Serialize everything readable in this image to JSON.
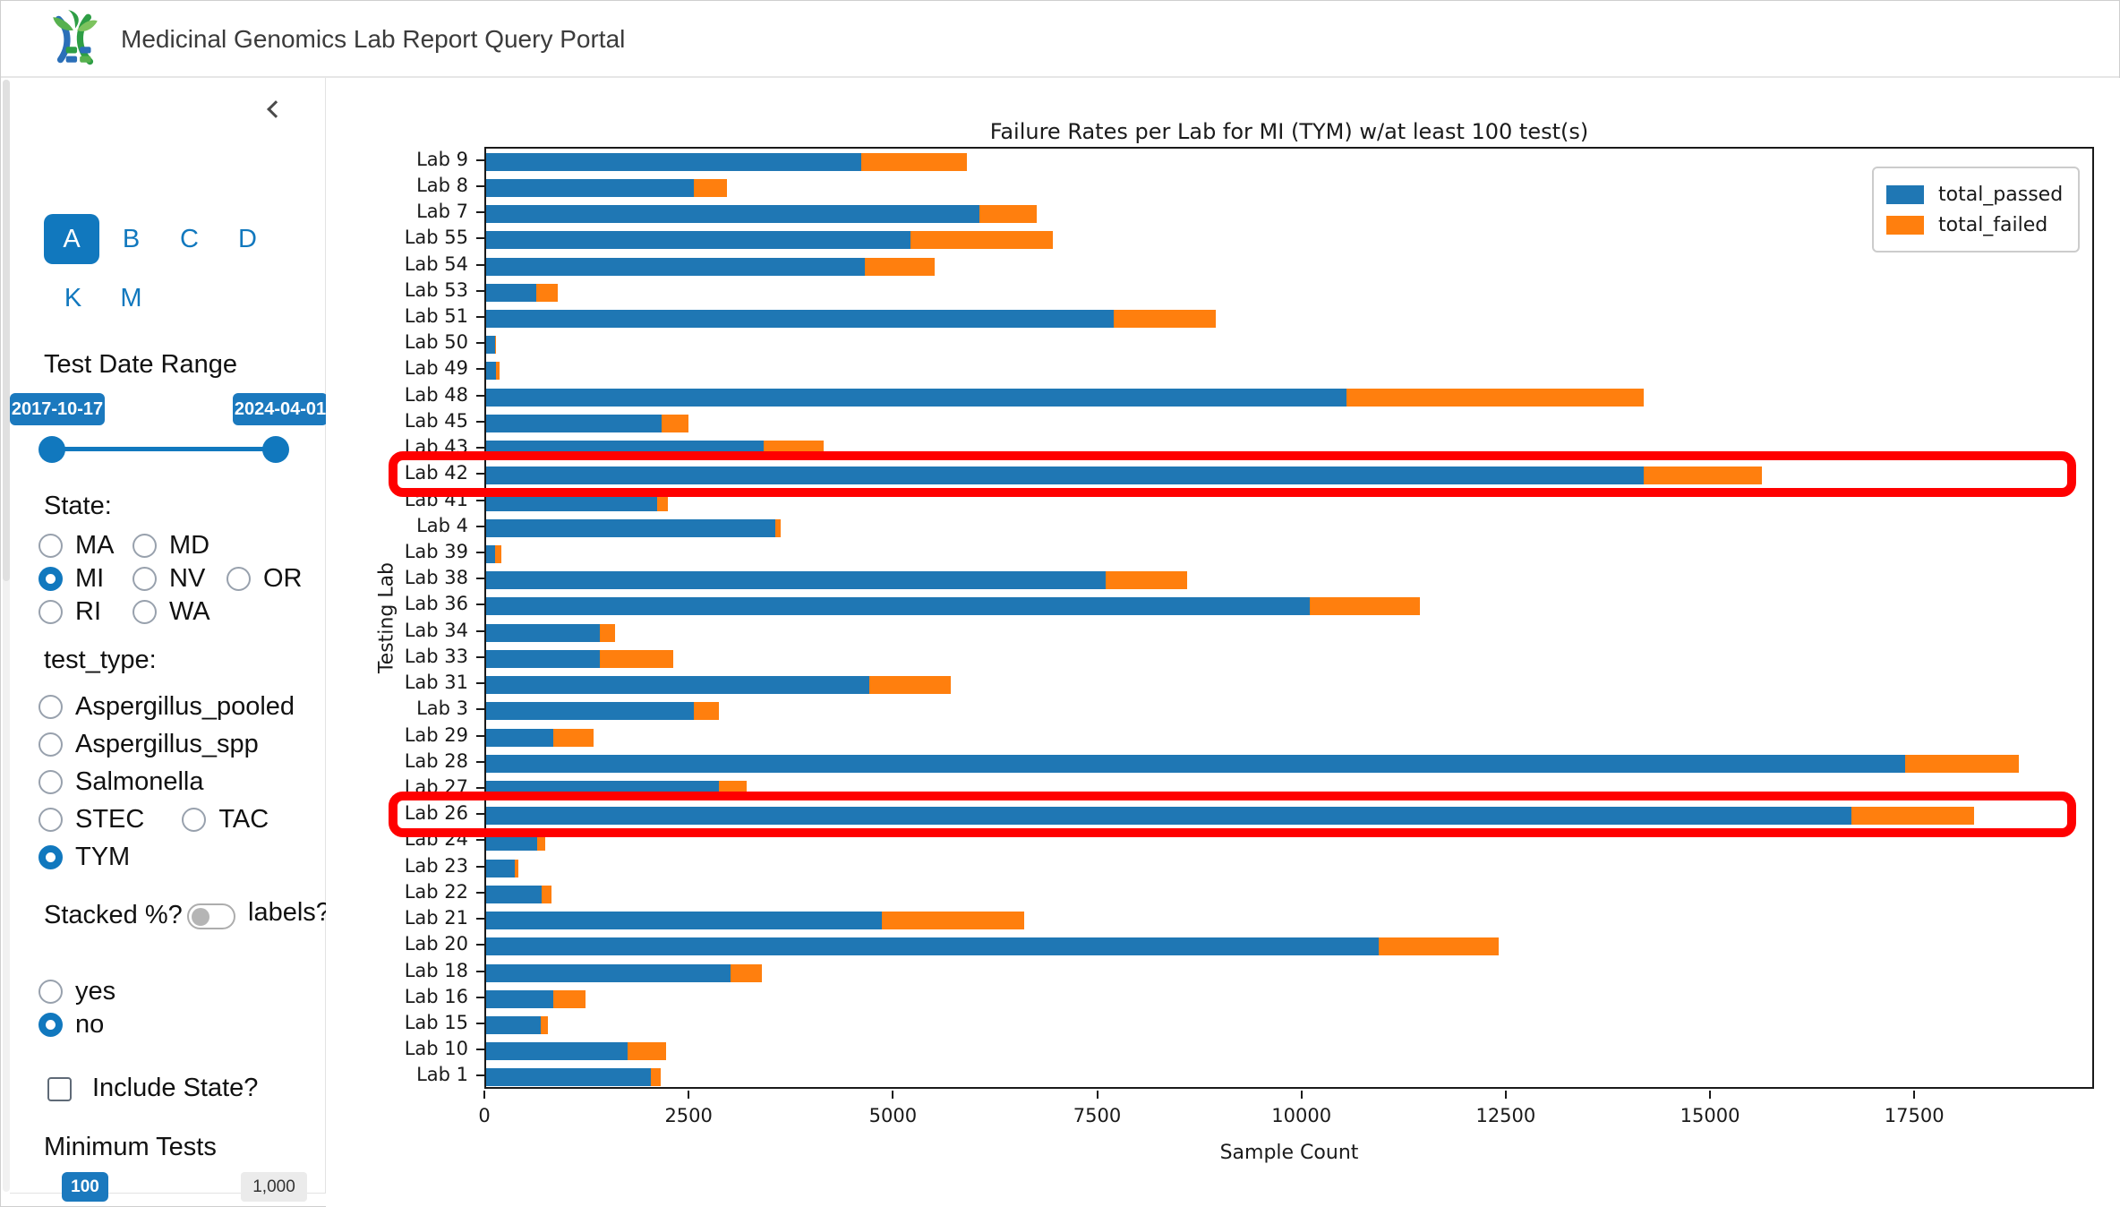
{
  "header": {
    "title": "Medicinal Genomics Lab Report Query Portal",
    "logo_icon": "dna-leaf-logo"
  },
  "sidebar": {
    "collapse_icon": "chevron-left",
    "tabs": {
      "row1": [
        "A",
        "B",
        "C",
        "D"
      ],
      "row2": [
        "K",
        "M"
      ],
      "active": "A"
    },
    "date_range": {
      "label": "Test Date Range",
      "start": "2017-10-17",
      "end": "2024-04-01"
    },
    "state": {
      "label": "State:",
      "rows": [
        [
          "MA",
          "MD"
        ],
        [
          "MI",
          "NV",
          "OR"
        ],
        [
          "RI",
          "WA"
        ]
      ],
      "selected": "MI"
    },
    "test_type": {
      "label": "test_type:",
      "rows": [
        [
          "Aspergillus_pooled"
        ],
        [
          "Aspergillus_spp"
        ],
        [
          "Salmonella"
        ],
        [
          "STEC",
          "TAC"
        ],
        [
          "TYM"
        ]
      ],
      "selected": "TYM"
    },
    "stacked": {
      "label": "Stacked %?",
      "toggle_label": "labels?",
      "toggle_on": false,
      "rows": [
        [
          "yes"
        ],
        [
          "no"
        ]
      ],
      "selected": "no"
    },
    "include_state": {
      "label": "Include State?",
      "checked": false
    },
    "minimum_tests": {
      "label": "Minimum Tests",
      "value": "100",
      "max": "1,000"
    }
  },
  "chart_data": {
    "type": "bar",
    "orientation": "horizontal",
    "stacked": true,
    "title": "Failure Rates per Lab for MI (TYM) w/at least 100 test(s)",
    "xlabel": "Sample Count",
    "ylabel": "Testing Lab",
    "xlim": [
      0,
      19700
    ],
    "xticks": [
      0,
      2500,
      5000,
      7500,
      10000,
      12500,
      15000,
      17500
    ],
    "grid": false,
    "legend_position": "upper right",
    "categories": [
      "Lab 9",
      "Lab 8",
      "Lab 7",
      "Lab 55",
      "Lab 54",
      "Lab 53",
      "Lab 51",
      "Lab 50",
      "Lab 49",
      "Lab 48",
      "Lab 45",
      "Lab 43",
      "Lab 42",
      "Lab 41",
      "Lab 4",
      "Lab 39",
      "Lab 38",
      "Lab 36",
      "Lab 34",
      "Lab 33",
      "Lab 31",
      "Lab 3",
      "Lab 29",
      "Lab 28",
      "Lab 27",
      "Lab 26",
      "Lab 24",
      "Lab 23",
      "Lab 22",
      "Lab 21",
      "Lab 20",
      "Lab 18",
      "Lab 16",
      "Lab 15",
      "Lab 10",
      "Lab 1"
    ],
    "series": [
      {
        "name": "total_passed",
        "color": "#1f77b4",
        "values": [
          4600,
          2550,
          6050,
          5200,
          4650,
          620,
          7700,
          110,
          120,
          10550,
          2150,
          3400,
          14200,
          2100,
          3550,
          110,
          7600,
          10100,
          1400,
          1400,
          4700,
          2550,
          820,
          17400,
          2850,
          16750,
          630,
          350,
          680,
          4850,
          10950,
          3000,
          820,
          670,
          1740,
          2020
        ]
      },
      {
        "name": "total_failed",
        "color": "#ff7f0e",
        "values": [
          1300,
          400,
          700,
          1750,
          850,
          260,
          1250,
          15,
          40,
          3650,
          330,
          740,
          1450,
          130,
          60,
          80,
          1000,
          1350,
          180,
          900,
          1000,
          300,
          500,
          1400,
          350,
          1500,
          90,
          40,
          120,
          1750,
          1470,
          380,
          400,
          90,
          470,
          120
        ]
      }
    ],
    "highlighted_rows": [
      "Lab 42",
      "Lab 26"
    ],
    "highlight_color": "#ff0000"
  }
}
